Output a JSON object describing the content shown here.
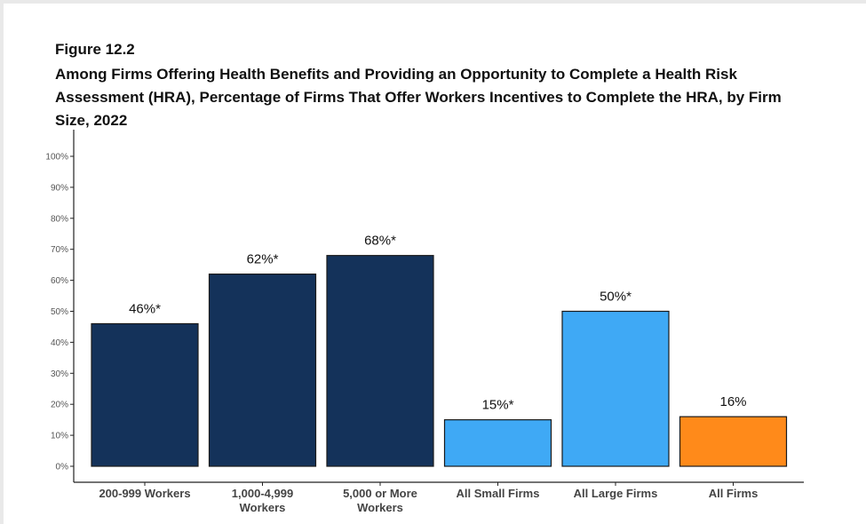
{
  "chart_data": {
    "type": "bar",
    "figure_label": "Figure 12.2",
    "title": "Among Firms Offering Health Benefits and Providing an Opportunity to Complete a Health Risk Assessment (HRA), Percentage of Firms That Offer Workers Incentives to Complete the HRA, by Firm Size, 2022",
    "categories": [
      [
        "200-999 Workers"
      ],
      [
        "1,000-4,999",
        "Workers"
      ],
      [
        "5,000 or More",
        "Workers"
      ],
      [
        "All Small Firms"
      ],
      [
        "All Large Firms"
      ],
      [
        "All Firms"
      ]
    ],
    "values": [
      46,
      62,
      68,
      15,
      50,
      16
    ],
    "data_labels": [
      "46%*",
      "62%*",
      "68%*",
      "15%*",
      "50%*",
      "16%"
    ],
    "bar_colors": [
      "#14325a",
      "#14325a",
      "#14325a",
      "#3fa9f5",
      "#3fa9f5",
      "#ff8a1a"
    ],
    "y_ticks": [
      "0%",
      "10%",
      "20%",
      "30%",
      "40%",
      "50%",
      "60%",
      "70%",
      "80%",
      "90%",
      "100%"
    ],
    "ylim": [
      0,
      100
    ],
    "grid": false,
    "legend": "none"
  }
}
